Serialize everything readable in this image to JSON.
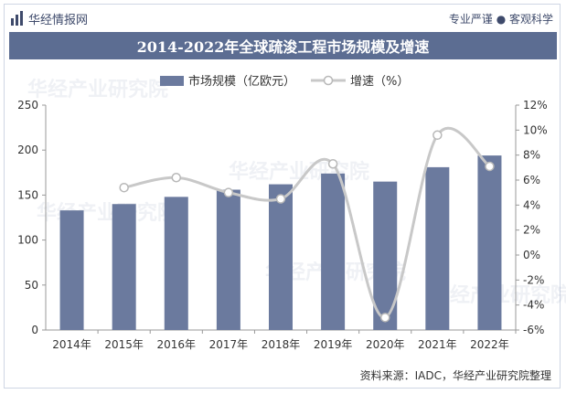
{
  "brand": {
    "name": "华经情报网",
    "icon": "bar-logo-icon"
  },
  "tagline": "专业严谨 ● 客观科学",
  "source": "资料来源：IADC，华经产业研究院整理",
  "watermark": "华经产业研究院",
  "colors": {
    "bar": "#6b7a9e",
    "line": "#c8c8c8",
    "title_bg": "#5c6d92"
  },
  "chart_data": {
    "type": "bar",
    "title": "2014-2022年全球疏浚工程市场规模及增速",
    "categories": [
      "2014年",
      "2015年",
      "2016年",
      "2017年",
      "2018年",
      "2019年",
      "2020年",
      "2021年",
      "2022年"
    ],
    "series": [
      {
        "name": "市场规模（亿欧元）",
        "type": "bar",
        "axis": "left",
        "values": [
          133,
          140,
          148,
          156,
          162,
          174,
          165,
          181,
          194
        ]
      },
      {
        "name": "增速（%）",
        "type": "line",
        "axis": "right",
        "values": [
          null,
          5.4,
          6.2,
          5.0,
          4.5,
          7.3,
          -5.0,
          9.6,
          7.1
        ]
      }
    ],
    "y_left": {
      "min": 0,
      "max": 250,
      "step": 50,
      "ticks": [
        "0",
        "50",
        "100",
        "150",
        "200",
        "250"
      ]
    },
    "y_right": {
      "min": -6,
      "max": 12,
      "step": 2,
      "ticks": [
        "-6%",
        "-4%",
        "-2%",
        "0%",
        "2%",
        "4%",
        "6%",
        "8%",
        "10%",
        "12%"
      ]
    },
    "grid": false,
    "legend": "top-center"
  }
}
